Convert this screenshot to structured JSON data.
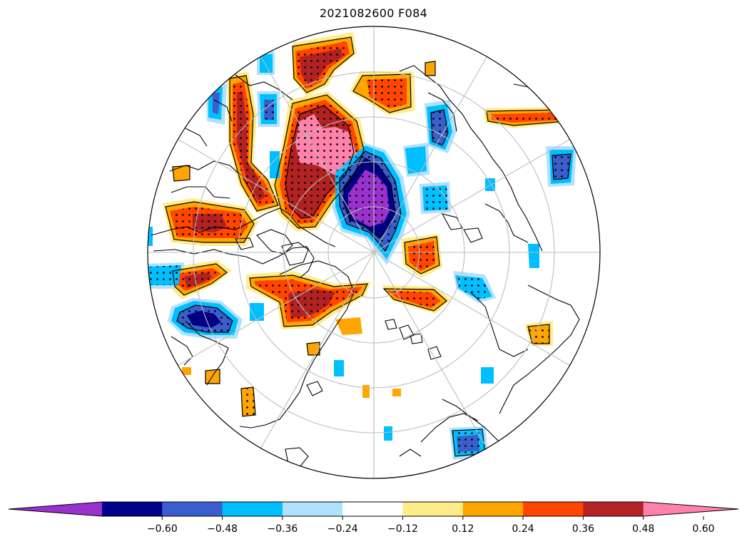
{
  "title": "2021082600 F084",
  "colorbar": {
    "tick_labels": [
      "−0.60",
      "−0.48",
      "−0.36",
      "−0.24",
      "−0.12",
      "0.12",
      "0.24",
      "0.36",
      "0.48",
      "0.60"
    ],
    "bins": [
      {
        "color": "#9932cc"
      },
      {
        "color": "#00008b"
      },
      {
        "color": "#3a5fcd"
      },
      {
        "color": "#00bfff"
      },
      {
        "color": "#b0e2ff"
      },
      {
        "color": "#ffffff"
      },
      {
        "color": "#ffec8b"
      },
      {
        "color": "#ffa500"
      },
      {
        "color": "#ff4500"
      },
      {
        "color": "#b22222"
      },
      {
        "color": "#ff82ab"
      }
    ],
    "extend": "both"
  },
  "map": {
    "projection": "north-polar-stereographic",
    "stippling": "significance-dots",
    "gridlines": "latitude-circles-and-meridians"
  }
}
